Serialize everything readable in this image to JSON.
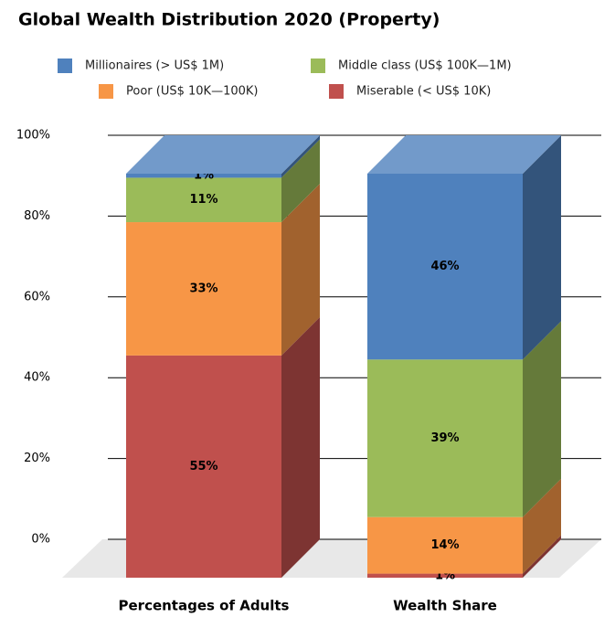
{
  "chart_data": {
    "type": "bar3d_stacked",
    "title": "Global Wealth Distribution 2020 (Property)",
    "categories": [
      "Percentages of Adults",
      "Wealth Share"
    ],
    "series": [
      {
        "name": "Millionaires (> US$ 1M)",
        "color": "#4f81bd",
        "values": [
          1,
          46
        ],
        "value_labels": [
          "1%",
          "46%"
        ]
      },
      {
        "name": "Middle class (US$ 100K—1M)",
        "color": "#9bbb59",
        "values": [
          11,
          39
        ],
        "value_labels": [
          "11%",
          "39%"
        ]
      },
      {
        "name": "Poor (US$ 10K—100K)",
        "color": "#f79646",
        "values": [
          33,
          14
        ],
        "value_labels": [
          "33%",
          "14%"
        ]
      },
      {
        "name": "Miserable (< US$ 10K)",
        "color": "#c0504d",
        "values": [
          55,
          1
        ],
        "value_labels": [
          "55%",
          "1%"
        ]
      }
    ],
    "ylim": [
      0,
      100
    ],
    "yticks": [
      {
        "value": 0,
        "label": "0%"
      },
      {
        "value": 20,
        "label": "20%"
      },
      {
        "value": 40,
        "label": "40%"
      },
      {
        "value": 60,
        "label": "60%"
      },
      {
        "value": 80,
        "label": "80%"
      },
      {
        "value": 100,
        "label": "100%"
      }
    ],
    "grid": true,
    "legend": "top"
  }
}
